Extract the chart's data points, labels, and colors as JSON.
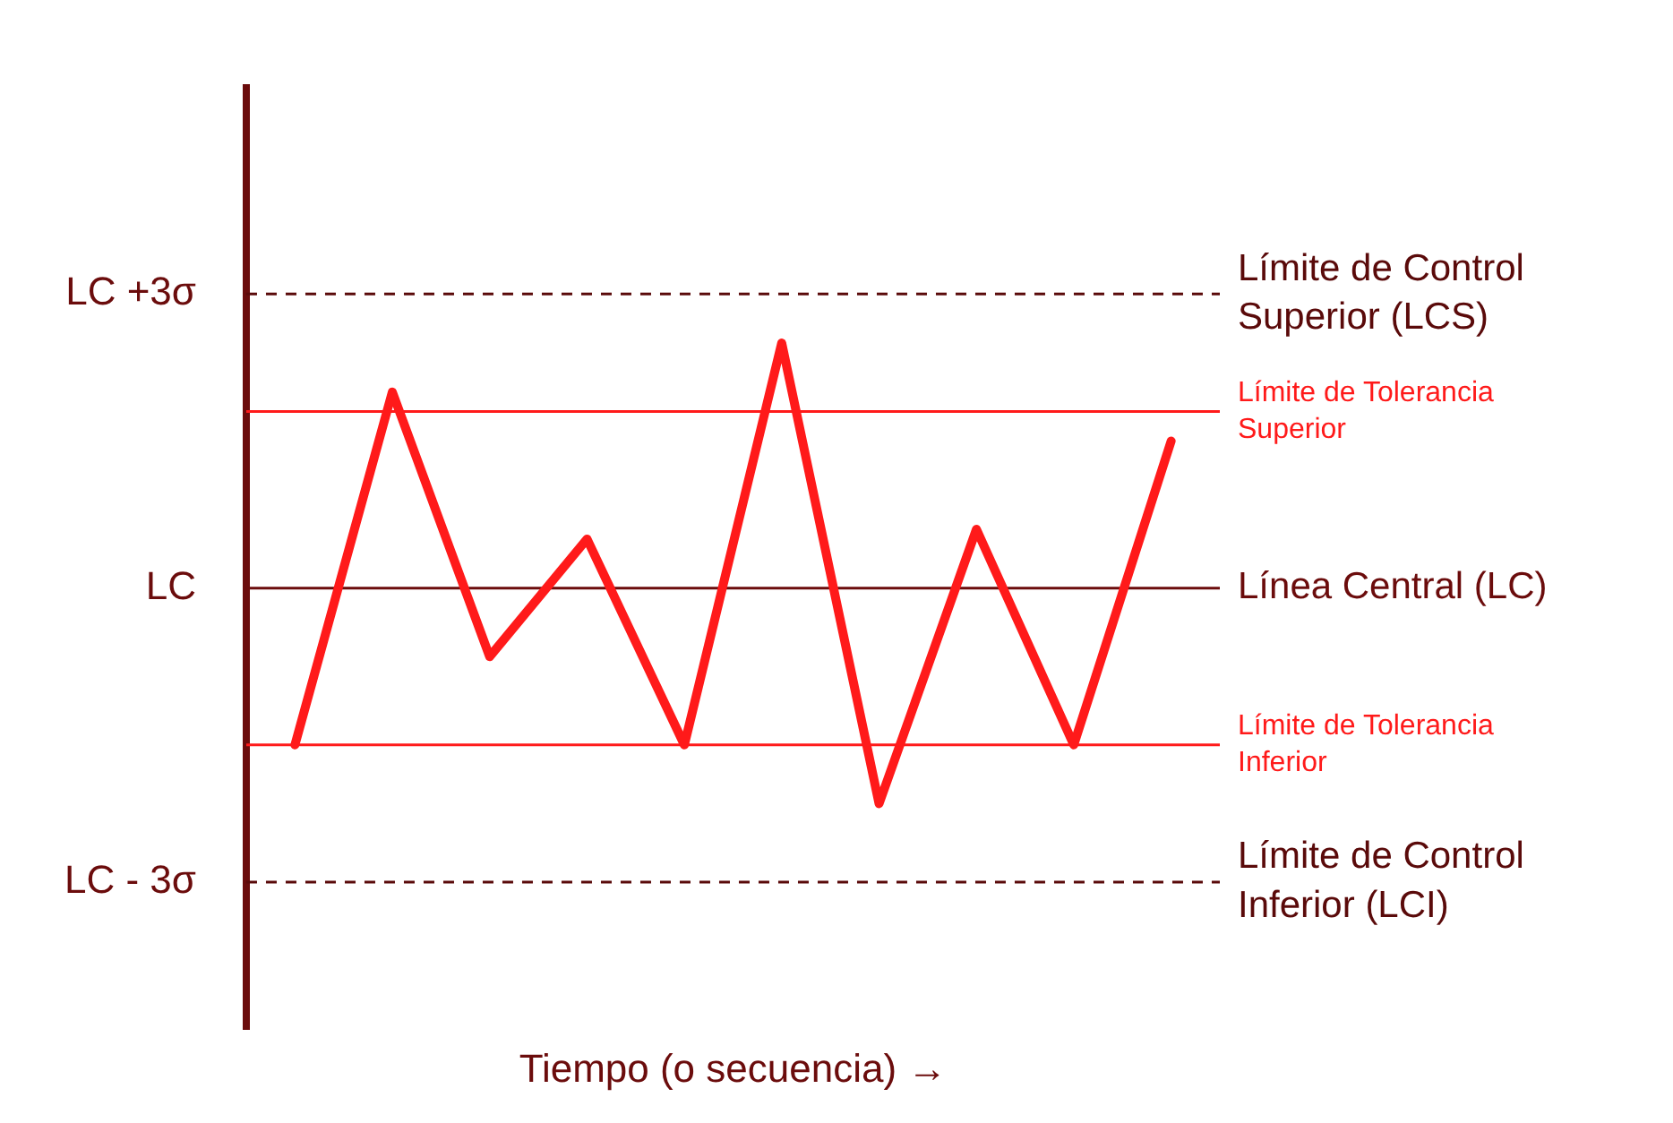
{
  "chart_data": {
    "type": "line",
    "xlabel": "Tiempo (o secuencia) →",
    "categories": [
      null,
      null,
      null,
      null,
      null,
      null,
      null,
      null,
      null,
      null
    ],
    "series": [
      {
        "color": "#ff1a1a",
        "values": [
          -1.6,
          2.0,
          -0.7,
          0.5,
          -1.6,
          2.5,
          -2.2,
          0.6,
          -1.6,
          1.5
        ]
      }
    ],
    "ylim": [
      -4.5,
      5.1
    ],
    "yticks": [
      {
        "value": 3,
        "label": "LC +3σ"
      },
      {
        "value": 0,
        "label": "LC"
      },
      {
        "value": -3,
        "label": "LC - 3σ"
      }
    ],
    "ref_lines": [
      {
        "axis": "y",
        "value": 3,
        "label": "Límite de Control Superior (LCS)",
        "color": "#5a0a0a",
        "line_style": "dashed"
      },
      {
        "axis": "y",
        "value": 1.8,
        "label": "Límite de Tolerancia Superior",
        "color": "#ff1a1a",
        "line_style": "solid"
      },
      {
        "axis": "y",
        "value": 0,
        "label": "Línea Central (LC)",
        "color": "#6b0c0c",
        "line_style": "solid"
      },
      {
        "axis": "y",
        "value": -1.6,
        "label": "Límite de Tolerancia Inferior",
        "color": "#ff1a1a",
        "line_style": "solid"
      },
      {
        "axis": "y",
        "value": -3,
        "label": "Límite de Control Inferior (LCI)",
        "color": "#5a0a0a",
        "line_style": "dashed"
      }
    ],
    "marker": "none",
    "line_style": "solid"
  }
}
